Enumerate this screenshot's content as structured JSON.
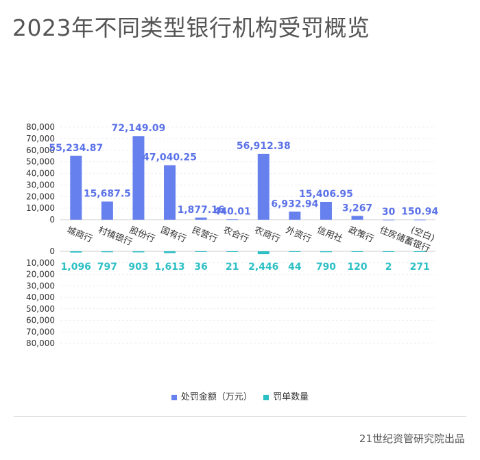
{
  "title": "2023年不同类型银行机构受罚概览",
  "source": "21世纪资管研究院出品",
  "colors": {
    "amount": "#6680ee",
    "count": "#2cbfc4",
    "axis": "#cccccc",
    "grid": "#eeeeee"
  },
  "chart_data": {
    "type": "bar",
    "categories": [
      "城商行",
      "村镇银行",
      "股份行",
      "国有行",
      "民营行",
      "农合行",
      "农商行",
      "外资行",
      "信用社",
      "政策行",
      "住房储蓄银行",
      "(空白)"
    ],
    "series": [
      {
        "name": "处罚金额（万元）",
        "values": [
          55234.87,
          15687.5,
          72149.09,
          47040.25,
          1877.16,
          440.01,
          56912.38,
          6932.94,
          15406.95,
          3267,
          30,
          150.94
        ],
        "labels": [
          "55,234.87",
          "15,687.5",
          "72,149.09",
          "47,040.25",
          "1,877.16",
          "440.01",
          "56,912.38",
          "6,932.94",
          "15,406.95",
          "3,267",
          "30",
          "150.94"
        ]
      },
      {
        "name": "罚单数量",
        "values": [
          1096,
          797,
          903,
          1613,
          36,
          21,
          2446,
          44,
          790,
          120,
          2,
          271
        ],
        "labels": [
          "1,096",
          "797",
          "903",
          "1,613",
          "36",
          "21",
          "2,446",
          "44",
          "790",
          "120",
          "2",
          "271"
        ]
      }
    ],
    "top_axis": {
      "ylim": [
        0,
        80000
      ],
      "ticks": [
        "0",
        "10,000",
        "20,000",
        "30,000",
        "40,000",
        "50,000",
        "60,000",
        "70,000",
        "80,000"
      ]
    },
    "bottom_axis": {
      "ylim": [
        0,
        80000
      ],
      "ticks": [
        "0",
        "10,000",
        "20,000",
        "30,000",
        "40,000",
        "50,000",
        "60,000",
        "70,000",
        "80,000"
      ]
    },
    "grid": true,
    "legend_position": "bottom"
  }
}
